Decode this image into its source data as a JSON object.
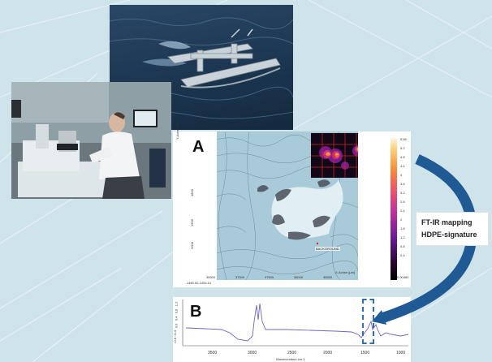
{
  "panel_a": {
    "label": "A",
    "y_axis_title": "Y-Achse [µm]",
    "x_axis_title": "X-Achse [µm]",
    "corner_readout": "1460.92-1454.01",
    "x_ticks": [
      "36500",
      "37000",
      "37500",
      "38000",
      "38500"
    ],
    "y_ticks": [
      "1800",
      "1900",
      "2000"
    ],
    "background_label": "BACKGROUND",
    "colorbar_ticks": [
      "5.66",
      "5.2",
      "4.8",
      "4.4",
      "4",
      "3.6",
      "3.2",
      "2.8",
      "2.4",
      "2",
      "1.6",
      "1.2",
      "0.8",
      "0.4",
      "0.00480"
    ]
  },
  "panel_b": {
    "label": "B",
    "x_ticks": [
      "3500",
      "3000",
      "2500",
      "2000",
      "1500",
      "1000"
    ],
    "y_ticks": [
      "1.2",
      "0.8",
      "0.4",
      "0.0",
      "-0.4",
      "-0.8"
    ],
    "x_axis_title": "Wavenumbers cm-1"
  },
  "annotation": {
    "line1": "FT-IR mapping",
    "line2": "HDPE-signature"
  },
  "colors": {
    "background": "#cfe3ea",
    "arrow": "#1f5a94",
    "spectrum_line": "#6f63c9",
    "highlight": "#2e6fb5"
  }
}
